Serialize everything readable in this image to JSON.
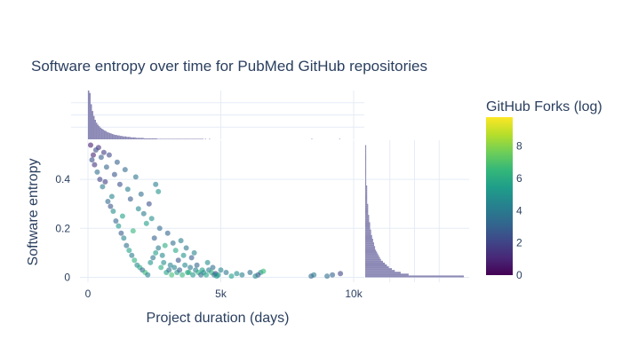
{
  "chart_data": {
    "type": "scatter",
    "title": "Software entropy over time for PubMed GitHub repositories",
    "xlabel": "Project duration (days)",
    "ylabel": "Software entropy",
    "xlim": [
      -300,
      10400
    ],
    "ylim": [
      -0.02,
      0.56
    ],
    "x_ticks": [
      {
        "value": 0,
        "label": "0"
      },
      {
        "value": 5000,
        "label": "5k"
      },
      {
        "value": 10000,
        "label": "10k"
      }
    ],
    "y_ticks": [
      {
        "value": 0,
        "label": "0"
      },
      {
        "value": 0.2,
        "label": "0.2"
      },
      {
        "value": 0.4,
        "label": "0.4"
      }
    ],
    "grid": true,
    "marginal_x": "histogram",
    "marginal_y": "histogram",
    "marginal_color": "#8c89b6",
    "colorbar": {
      "title": "GitHub Forks (log)",
      "range": [
        0,
        9.8
      ],
      "ticks": [
        {
          "value": 0,
          "label": "0"
        },
        {
          "value": 2,
          "label": "2"
        },
        {
          "value": 4,
          "label": "4"
        },
        {
          "value": 6,
          "label": "6"
        },
        {
          "value": 8,
          "label": "8"
        }
      ],
      "colorscale": [
        "#440154",
        "#482878",
        "#3e4989",
        "#31688e",
        "#26828e",
        "#1f9e89",
        "#35b779",
        "#6ece58",
        "#b5de2b",
        "#fde725"
      ]
    },
    "x_histogram": {
      "bin_width_days": 50,
      "counts": [
        100,
        95,
        72,
        58,
        48,
        40,
        34,
        30,
        27,
        24,
        22,
        20,
        18,
        17,
        15,
        14,
        13,
        12,
        11,
        10,
        9,
        9,
        8,
        8,
        7,
        7,
        6,
        6,
        6,
        5,
        5,
        5,
        4,
        4,
        4,
        4,
        3,
        3,
        3,
        3,
        3,
        3,
        2,
        2,
        2,
        2,
        2,
        2,
        2,
        2,
        2,
        2,
        1,
        1,
        1,
        1,
        1,
        1,
        1,
        1,
        1,
        1,
        1,
        1,
        1,
        1,
        1,
        1,
        1,
        1,
        1,
        1,
        1,
        1,
        1,
        1,
        1,
        1,
        1,
        1,
        1,
        1,
        1,
        1,
        1,
        1,
        1,
        0,
        1,
        0,
        0,
        1,
        0,
        0,
        0,
        0,
        0,
        0,
        0,
        0,
        0,
        0,
        0,
        0,
        0,
        0,
        0,
        0,
        0,
        0,
        0,
        0,
        0,
        0,
        0,
        0,
        0,
        0,
        0,
        0,
        0,
        0,
        0,
        0,
        0,
        0,
        0,
        0,
        0,
        0,
        0,
        0,
        0,
        0,
        0,
        0,
        0,
        0,
        0,
        0,
        0,
        0,
        0,
        0,
        0,
        0,
        0,
        0,
        0,
        0,
        0,
        0,
        0,
        0,
        0,
        0,
        0,
        0,
        0,
        0,
        0,
        0,
        0,
        0,
        0,
        0,
        0,
        0,
        1,
        0,
        0,
        0,
        0,
        0,
        0,
        0,
        0,
        0,
        0,
        0,
        0,
        0,
        0,
        0,
        0,
        0,
        0,
        0,
        0,
        1
      ]
    },
    "y_histogram": {
      "bin_width": 0.0075,
      "counts": [
        100,
        44,
        36,
        30,
        27,
        24,
        22,
        20,
        18,
        16,
        15,
        14,
        13,
        12,
        11,
        10,
        10,
        9,
        9,
        8,
        8,
        7,
        7,
        6,
        6,
        6,
        5,
        5,
        5,
        5,
        4,
        4,
        4,
        4,
        3,
        3,
        3,
        3,
        3,
        3,
        2,
        2,
        2,
        2,
        2,
        2,
        2,
        2,
        2,
        2,
        1,
        1,
        1,
        1,
        1,
        1,
        1,
        1,
        1,
        1,
        1,
        1,
        1,
        1,
        1,
        1,
        1,
        1,
        1,
        1,
        1,
        1
      ]
    },
    "points": [
      [
        9000,
        0.005,
        3.5
      ],
      [
        9200,
        0.01,
        3.0
      ],
      [
        9500,
        0.015,
        2.0
      ],
      [
        8400,
        0.005,
        3.2
      ],
      [
        8500,
        0.01,
        4.0
      ],
      [
        6500,
        0.02,
        5.0
      ],
      [
        6400,
        0.01,
        2.5
      ],
      [
        6300,
        0.005,
        4.5
      ],
      [
        6600,
        0.025,
        6.5
      ],
      [
        6100,
        0.02,
        3.5
      ],
      [
        5800,
        0.01,
        4.2
      ],
      [
        5600,
        0.015,
        4.8
      ],
      [
        5400,
        0.005,
        5.5
      ],
      [
        5200,
        0.02,
        3.8
      ],
      [
        5000,
        0.03,
        4.5
      ],
      [
        4800,
        0.015,
        2.2
      ],
      [
        4900,
        0.01,
        5.2
      ],
      [
        4700,
        0.04,
        3.5
      ],
      [
        4500,
        0.06,
        4.8
      ],
      [
        4300,
        0.03,
        5.6
      ],
      [
        4100,
        0.05,
        3.2
      ],
      [
        4000,
        0.1,
        4.4
      ],
      [
        3900,
        0.08,
        2.8
      ],
      [
        3800,
        0.02,
        6.2
      ],
      [
        3700,
        0.12,
        3.8
      ],
      [
        3600,
        0.09,
        5.0
      ],
      [
        3500,
        0.15,
        4.2
      ],
      [
        3400,
        0.07,
        2.6
      ],
      [
        3300,
        0.11,
        5.8
      ],
      [
        3200,
        0.14,
        3.6
      ],
      [
        3100,
        0.05,
        4.4
      ],
      [
        3000,
        0.18,
        3.2
      ],
      [
        2900,
        0.13,
        6.0
      ],
      [
        2800,
        0.09,
        4.6
      ],
      [
        2700,
        0.2,
        3.4
      ],
      [
        2650,
        0.35,
        5.0
      ],
      [
        2550,
        0.38,
        4.2
      ],
      [
        2500,
        0.16,
        3.0
      ],
      [
        2400,
        0.24,
        4.8
      ],
      [
        2300,
        0.3,
        2.4
      ],
      [
        2200,
        0.22,
        5.4
      ],
      [
        2100,
        0.26,
        4.0
      ],
      [
        2000,
        0.34,
        3.6
      ],
      [
        1900,
        0.28,
        4.6
      ],
      [
        1800,
        0.41,
        3.8
      ],
      [
        1700,
        0.19,
        6.4
      ],
      [
        1600,
        0.32,
        2.8
      ],
      [
        1500,
        0.36,
        4.2
      ],
      [
        1400,
        0.44,
        3.4
      ],
      [
        1300,
        0.25,
        5.6
      ],
      [
        1200,
        0.38,
        2.4
      ],
      [
        1100,
        0.47,
        3.0
      ],
      [
        1000,
        0.42,
        2.6
      ],
      [
        900,
        0.33,
        4.4
      ],
      [
        800,
        0.5,
        2.2
      ],
      [
        700,
        0.45,
        3.2
      ],
      [
        600,
        0.51,
        1.8
      ],
      [
        500,
        0.49,
        2.8
      ],
      [
        400,
        0.53,
        1.4
      ],
      [
        300,
        0.52,
        2.2
      ],
      [
        200,
        0.5,
        1.0
      ],
      [
        100,
        0.54,
        0.8
      ],
      [
        150,
        0.48,
        2.4
      ],
      [
        250,
        0.46,
        1.6
      ],
      [
        350,
        0.43,
        3.6
      ],
      [
        450,
        0.4,
        2.0
      ],
      [
        550,
        0.37,
        4.0
      ],
      [
        650,
        0.39,
        1.8
      ],
      [
        750,
        0.31,
        3.4
      ],
      [
        850,
        0.29,
        2.6
      ],
      [
        950,
        0.27,
        4.8
      ],
      [
        1050,
        0.23,
        3.2
      ],
      [
        1150,
        0.21,
        5.2
      ],
      [
        1250,
        0.18,
        2.8
      ],
      [
        1350,
        0.16,
        4.4
      ],
      [
        1450,
        0.13,
        3.6
      ],
      [
        1550,
        0.11,
        5.6
      ],
      [
        1650,
        0.09,
        4.0
      ],
      [
        1750,
        0.07,
        6.2
      ],
      [
        1850,
        0.05,
        4.6
      ],
      [
        1950,
        0.04,
        5.8
      ],
      [
        2050,
        0.03,
        3.4
      ],
      [
        2150,
        0.02,
        6.6
      ],
      [
        2250,
        0.01,
        4.2
      ],
      [
        2350,
        0.06,
        5.0
      ],
      [
        2450,
        0.08,
        3.8
      ],
      [
        2550,
        0.1,
        5.4
      ],
      [
        2650,
        0.12,
        4.0
      ],
      [
        2750,
        0.04,
        6.0
      ],
      [
        2850,
        0.06,
        4.8
      ],
      [
        2950,
        0.02,
        5.6
      ],
      [
        3050,
        0.03,
        3.6
      ],
      [
        3150,
        0.01,
        6.8
      ],
      [
        3250,
        0.04,
        4.4
      ],
      [
        3350,
        0.02,
        5.2
      ],
      [
        3450,
        0.03,
        3.0
      ],
      [
        3550,
        0.01,
        6.4
      ],
      [
        3650,
        0.05,
        4.6
      ],
      [
        3750,
        0.02,
        5.8
      ],
      [
        3850,
        0.04,
        3.8
      ],
      [
        3950,
        0.01,
        5.0
      ],
      [
        4050,
        0.03,
        4.2
      ],
      [
        4150,
        0.02,
        6.0
      ],
      [
        4250,
        0.01,
        3.4
      ],
      [
        4350,
        0.02,
        4.8
      ],
      [
        4450,
        0.01,
        5.6
      ],
      [
        4550,
        0.03,
        4.0
      ],
      [
        4650,
        0.02,
        6.2
      ],
      [
        4750,
        0.01,
        3.6
      ],
      [
        4850,
        0.005,
        5.2
      ]
    ]
  }
}
